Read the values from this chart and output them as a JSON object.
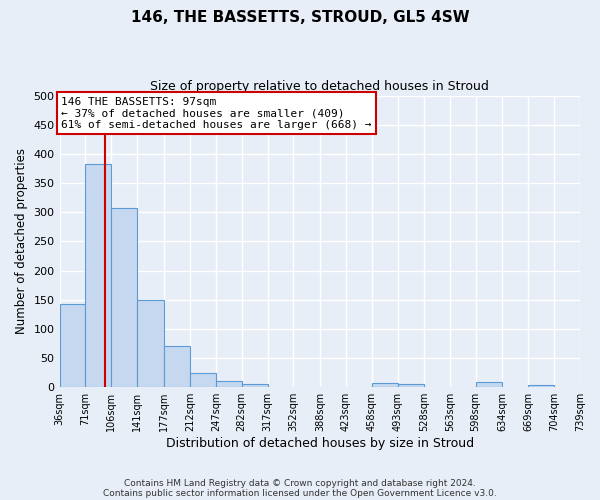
{
  "title": "146, THE BASSETTS, STROUD, GL5 4SW",
  "subtitle": "Size of property relative to detached houses in Stroud",
  "xlabel": "Distribution of detached houses by size in Stroud",
  "ylabel": "Number of detached properties",
  "bar_edges": [
    36,
    71,
    106,
    141,
    177,
    212,
    247,
    282,
    317,
    352,
    388,
    423,
    458,
    493,
    528,
    563,
    598,
    634,
    669,
    704,
    739
  ],
  "bar_heights": [
    143,
    383,
    308,
    150,
    70,
    24,
    10,
    5,
    0,
    0,
    0,
    0,
    7,
    5,
    0,
    0,
    9,
    0,
    3,
    0
  ],
  "tick_labels": [
    "36sqm",
    "71sqm",
    "106sqm",
    "141sqm",
    "177sqm",
    "212sqm",
    "247sqm",
    "282sqm",
    "317sqm",
    "352sqm",
    "388sqm",
    "423sqm",
    "458sqm",
    "493sqm",
    "528sqm",
    "563sqm",
    "598sqm",
    "634sqm",
    "669sqm",
    "704sqm",
    "739sqm"
  ],
  "bar_color": "#c5d8ef",
  "bar_edge_color": "#5b9bd5",
  "property_line_x": 97,
  "property_line_color": "#cc0000",
  "annotation_line1": "146 THE BASSETTS: 97sqm",
  "annotation_line2": "← 37% of detached houses are smaller (409)",
  "annotation_line3": "61% of semi-detached houses are larger (668) →",
  "annotation_box_color": "#ffffff",
  "annotation_box_edge": "#cc0000",
  "ylim": [
    0,
    500
  ],
  "yticks": [
    0,
    50,
    100,
    150,
    200,
    250,
    300,
    350,
    400,
    450,
    500
  ],
  "footer_line1": "Contains HM Land Registry data © Crown copyright and database right 2024.",
  "footer_line2": "Contains public sector information licensed under the Open Government Licence v3.0.",
  "bg_color": "#e8eef7",
  "grid_color": "#ffffff",
  "figsize": [
    6.0,
    5.0
  ],
  "dpi": 100
}
